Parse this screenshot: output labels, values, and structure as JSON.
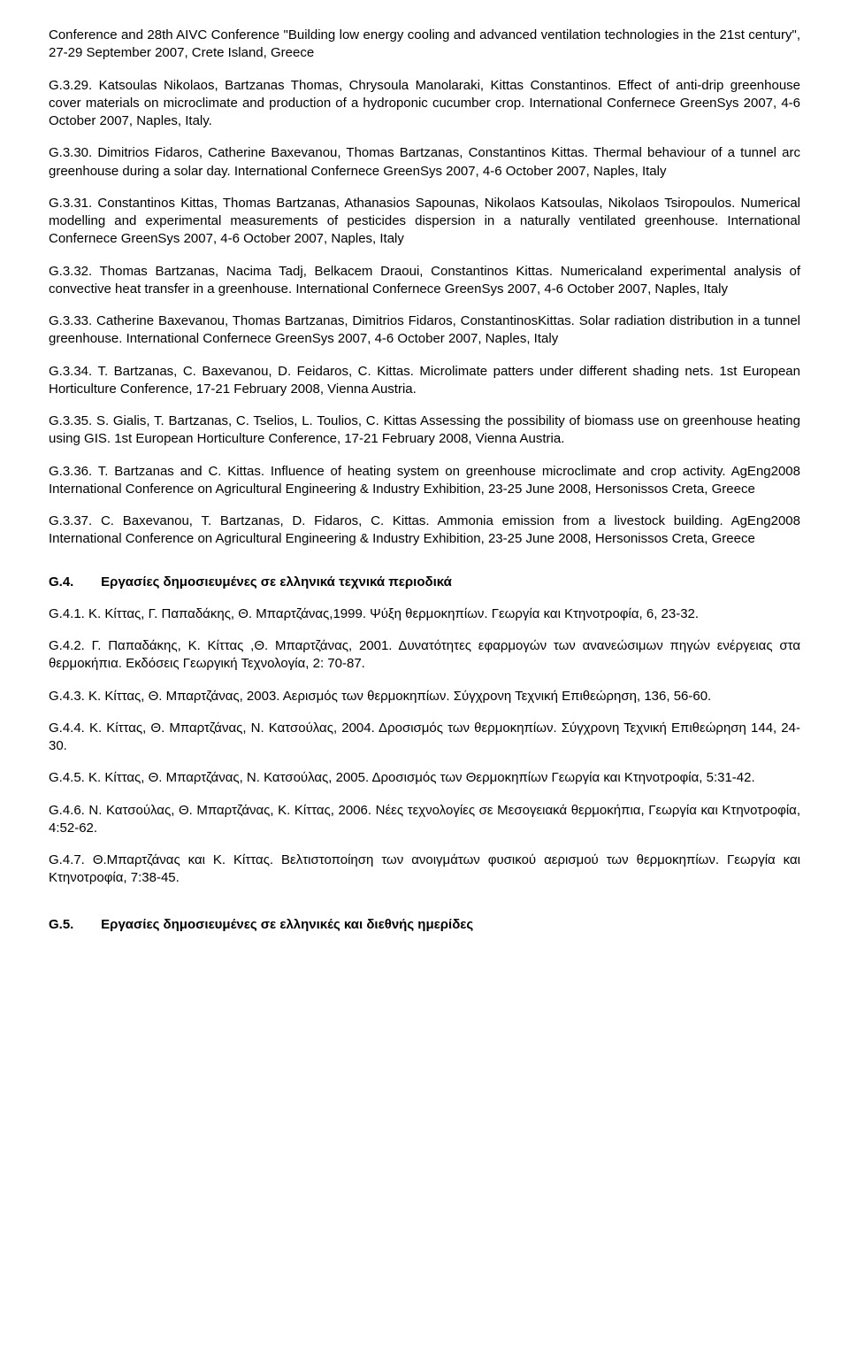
{
  "intro_tail": "Conference and 28th AIVC Conference \"Building low energy cooling and advanced ventilation technologies in the 21st century\", 27-29 September 2007, Crete Island, Greece",
  "entries": [
    "G.3.29. Katsoulas Nikolaos, Bartzanas Thomas, Chrysoula Manolaraki, Kittas Constantinos. Effect of anti-drip greenhouse cover materials on microclimate and production of a hydroponic cucumber crop. International Confernece GreenSys 2007, 4-6 October 2007, Naples, Italy.",
    "G.3.30. Dimitrios Fidaros, Catherine Baxevanou, Thomas Bartzanas, Constantinos Kittas. Thermal behaviour of a tunnel arc greenhouse during a solar day. International Confernece GreenSys 2007, 4-6 October 2007, Naples, Italy",
    "G.3.31. Constantinos Kittas, Thomas Bartzanas, Athanasios Sapounas, Nikolaos Katsoulas, Nikolaos Tsiropoulos. Numerical modelling and experimental measurements of pesticides dispersion in a naturally ventilated greenhouse. International Confernece GreenSys 2007, 4-6 October 2007, Naples, Italy",
    "G.3.32. Thomas Bartzanas, Nacima Tadj, Belkacem Draoui, Constantinos Kittas. Numericaland experimental analysis of convective heat transfer in a greenhouse. International Confernece GreenSys 2007, 4-6 October 2007, Naples, Italy",
    "G.3.33. Catherine Baxevanou, Thomas Bartzanas, Dimitrios Fidaros, ConstantinosKittas. Solar radiation distribution in a tunnel greenhouse. International Confernece GreenSys 2007, 4-6 October 2007, Naples, Italy",
    "G.3.34. T. Bartzanas, C. Baxevanou, D. Feidaros, C. Kittas. Microlimate patters under different shading nets. 1st European Horticulture Conference, 17-21 February 2008, Vienna Austria.",
    "G.3.35. S. Gialis, T. Bartzanas, C. Tselios, L. Toulios, C. Kittas Assessing the possibility of biomass use on greenhouse heating using GIS. 1st European Horticulture Conference, 17-21 February 2008, Vienna Austria.",
    "G.3.36. T. Bartzanas and C. Kittas. Influence of heating system on greenhouse microclimate and crop activity. AgEng2008 International Conference on Agricultural Engineering & Industry Exhibition, 23-25 June 2008, Hersonissos Creta, Greece",
    "G.3.37. C. Baxevanou, T. Bartzanas, D. Fidaros, C. Kittas. Ammonia emission from a livestock building. AgEng2008 International Conference on Agricultural Engineering & Industry Exhibition, 23-25 June 2008, Hersonissos Creta, Greece"
  ],
  "sectionG4": {
    "num": "G.4.",
    "title": "Εργασίες δημοσιευμένες σε ελληνικά τεχνικά περιοδικά"
  },
  "g4_entries": [
    "G.4.1. Κ. Κίττας, Γ. Παπαδάκης, Θ. Μπαρτζάνας,1999. Ψύξη θερμοκηπίων. Γεωργία και Κτηνοτροφία, 6, 23-32.",
    "G.4.2. Γ. Παπαδάκης, Κ. Κίττας ,Θ. Μπαρτζάνας, 2001. Δυνατότητες εφαρμογών των ανανεώσιμων πηγών ενέργειας στα θερμοκήπια. Εκδόσεις Γεωργική Τεχνολογία, 2: 70-87.",
    "G.4.3. Κ. Κίττας, Θ. Μπαρτζάνας, 2003. Αερισμός των θερμοκηπίων. Σύγχρονη Τεχνική Επιθεώρηση, 136, 56-60.",
    "G.4.4. Κ. Κίττας, Θ. Μπαρτζάνας, Ν. Κατσούλας, 2004. Δροσισμός των θερμοκηπίων. Σύγχρονη Τεχνική Επιθεώρηση 144, 24-30.",
    "G.4.5. Κ. Κίττας, Θ. Μπαρτζάνας, Ν. Κατσούλας, 2005. Δροσισμός των Θερμοκηπίων Γεωργία και Κτηνοτροφία, 5:31-42.",
    "G.4.6. Ν. Κατσούλας, Θ. Μπαρτζάνας, Κ. Κίττας, 2006. Νέες τεχνολογίες σε Μεσογειακά θερμοκήπια, Γεωργία και Κτηνοτροφία, 4:52-62.",
    "G.4.7. Θ.Μπαρτζάνας και Κ. Κίττας. Βελτιστοποίηση των ανοιγμάτων φυσικού αερισμού των θερμοκηπίων. Γεωργία και Κτηνοτροφία, 7:38-45."
  ],
  "sectionG5": {
    "num": "G.5.",
    "title": "Εργασίες δημοσιευμένες σε ελληνικές και διεθνής ημερίδες"
  }
}
